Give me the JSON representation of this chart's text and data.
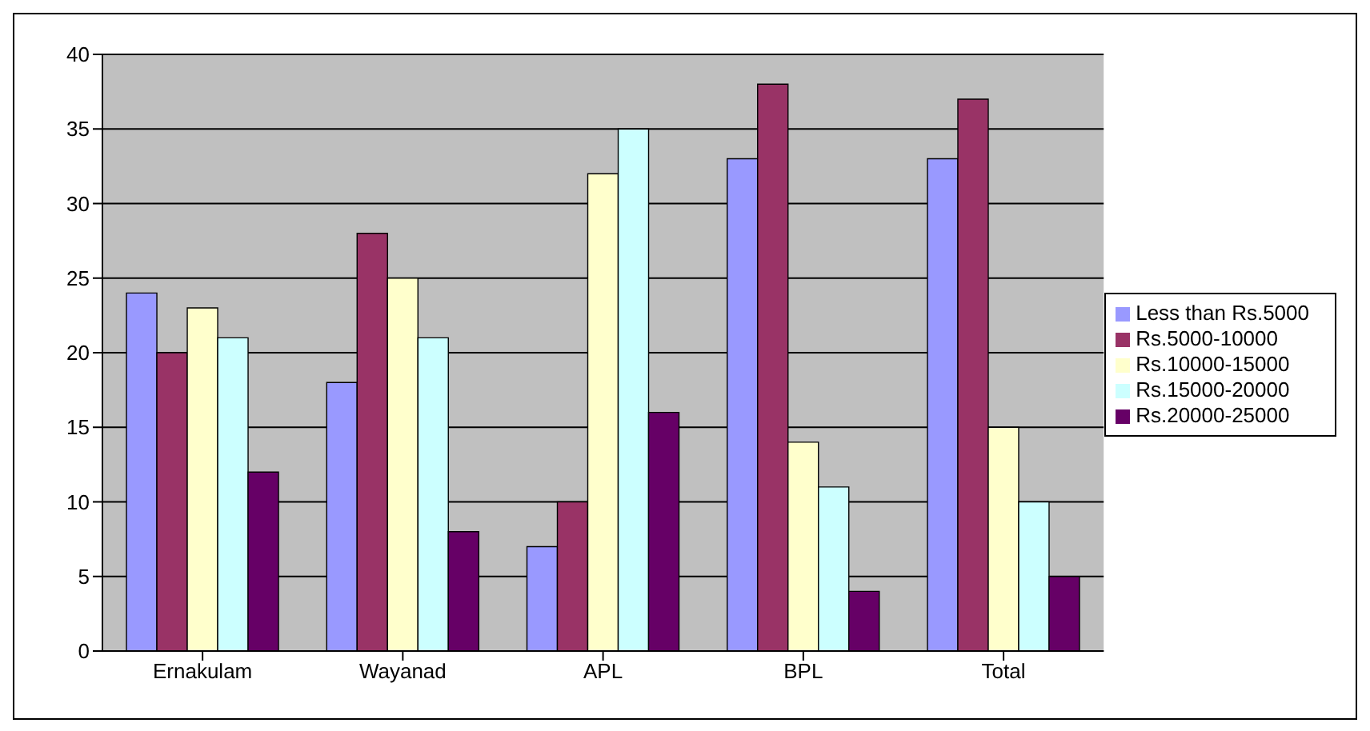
{
  "chart_data": {
    "type": "bar",
    "categories": [
      "Ernakulam",
      "Wayanad",
      "APL",
      "BPL",
      "Total"
    ],
    "series": [
      {
        "name": "Less than Rs.5000",
        "color": "#9999ff",
        "values": [
          24,
          18,
          7,
          33,
          33
        ]
      },
      {
        "name": "Rs.5000-10000",
        "color": "#993366",
        "values": [
          20,
          28,
          10,
          38,
          37
        ]
      },
      {
        "name": "Rs.10000-15000",
        "color": "#ffffcc",
        "values": [
          23,
          25,
          32,
          14,
          15
        ]
      },
      {
        "name": "Rs.15000-20000",
        "color": "#ccffff",
        "values": [
          21,
          21,
          35,
          11,
          10
        ]
      },
      {
        "name": "Rs.20000-25000",
        "color": "#660066",
        "values": [
          12,
          8,
          16,
          4,
          5
        ]
      }
    ],
    "ylim": [
      0,
      40
    ],
    "yticks": [
      0,
      5,
      10,
      15,
      20,
      25,
      30,
      35,
      40
    ],
    "grid": "y",
    "legend": "right"
  }
}
